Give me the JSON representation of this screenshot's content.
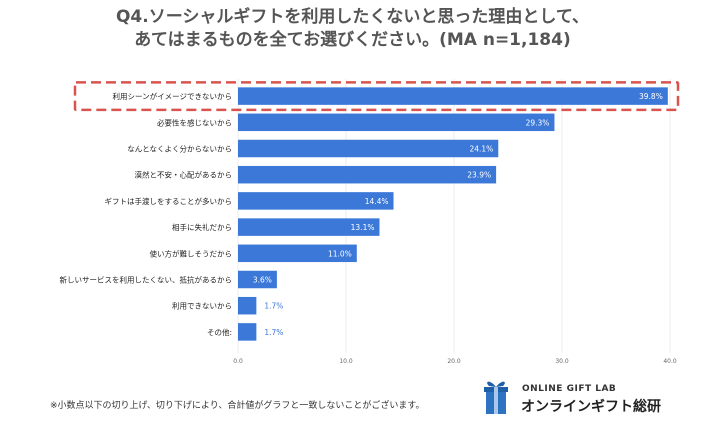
{
  "title": {
    "line1": "Q4.ソーシャルギフトを利用したくないと思った理由として、",
    "line2": "あてはまるものを全てお選びください。(MA n=1,184)"
  },
  "chart_data": {
    "type": "bar",
    "orientation": "horizontal",
    "categories": [
      "利用シーンがイメージできないから",
      "必要性を感じないから",
      "なんとなくよく分からないから",
      "漠然と不安・心配があるから",
      "ギフトは手渡しをすることが多いから",
      "相手に失礼だから",
      "使い方が難しそうだから",
      "新しいサービスを利用したくない、抵抗があるから",
      "利用できないから",
      "その他:"
    ],
    "values": [
      39.8,
      29.3,
      24.1,
      23.9,
      14.4,
      13.1,
      11.0,
      3.6,
      1.7,
      1.7
    ],
    "value_labels": [
      "39.8%",
      "29.3%",
      "24.1%",
      "23.9%",
      "14.4%",
      "13.1%",
      "11.0%",
      "3.6%",
      "1.7%",
      "1.7%"
    ],
    "xlim": [
      0,
      40
    ],
    "xticks": [
      "0.0",
      "10.0",
      "20.0",
      "30.0",
      "40.0"
    ],
    "xtick_values": [
      0,
      10,
      20,
      30,
      40
    ],
    "highlighted_index": 0,
    "bar_color": "#3c78d8",
    "highlight_color": "#d9534f"
  },
  "footnote": "※小数点以下の切り上げ、切り下げにより、合計値がグラフと一致しないことがございます。",
  "logo": {
    "subtitle": "ONLINE GIFT LAB",
    "name": "オンラインギフト総研"
  }
}
